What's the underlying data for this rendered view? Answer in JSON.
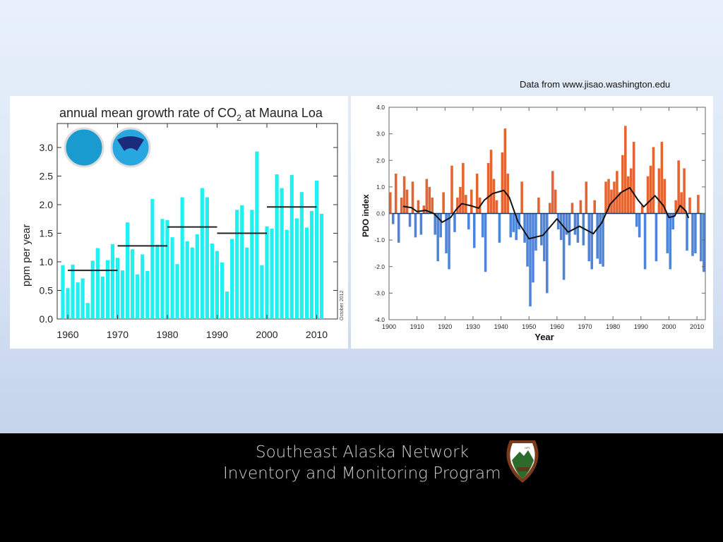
{
  "source_note": "Data from www.jisao.washington.edu",
  "footer": {
    "line1": "Southeast Alaska Network",
    "line2": "Inventory and Monitoring Program",
    "logo_text": "NATIONAL PARK SERVICE"
  },
  "chart_data": [
    {
      "type": "bar",
      "title": "annual mean growth rate of CO",
      "title_sub": "2",
      "title_end": " at Mauna Loa",
      "ylabel": "ppm per year",
      "xlabel": "",
      "side_note": "October 2012",
      "color": "#1ff0f0",
      "ylim": [
        0,
        3.4
      ],
      "yticks": [
        "0.0",
        "0.5",
        "1.0",
        "1.5",
        "2.0",
        "2.5",
        "3.0"
      ],
      "xticks": [
        "1960",
        "1970",
        "1980",
        "1990",
        "2000",
        "2010"
      ],
      "x": [
        1959,
        1960,
        1961,
        1962,
        1963,
        1964,
        1965,
        1966,
        1967,
        1968,
        1969,
        1970,
        1971,
        1972,
        1973,
        1974,
        1975,
        1976,
        1977,
        1978,
        1979,
        1980,
        1981,
        1982,
        1983,
        1984,
        1985,
        1986,
        1987,
        1988,
        1989,
        1990,
        1991,
        1992,
        1993,
        1994,
        1995,
        1996,
        1997,
        1998,
        1999,
        2000,
        2001,
        2002,
        2003,
        2004,
        2005,
        2006,
        2007,
        2008,
        2009,
        2010,
        2011
      ],
      "values": [
        0.94,
        0.54,
        0.95,
        0.64,
        0.71,
        0.28,
        1.02,
        1.24,
        0.74,
        1.03,
        1.31,
        1.07,
        0.85,
        1.69,
        1.22,
        0.78,
        1.13,
        0.84,
        2.1,
        1.3,
        1.75,
        1.73,
        1.43,
        0.96,
        2.13,
        1.36,
        1.25,
        1.48,
        2.29,
        2.13,
        1.32,
        1.19,
        0.99,
        0.48,
        1.4,
        1.91,
        1.99,
        1.25,
        1.91,
        2.93,
        0.94,
        1.62,
        1.58,
        2.53,
        2.29,
        1.56,
        2.52,
        1.76,
        2.22,
        1.6,
        1.89,
        2.42,
        1.84
      ],
      "decadal_means": [
        {
          "start": 1960,
          "end": 1970,
          "value": 0.85
        },
        {
          "start": 1970,
          "end": 1980,
          "value": 1.28
        },
        {
          "start": 1980,
          "end": 1990,
          "value": 1.61
        },
        {
          "start": 1990,
          "end": 2000,
          "value": 1.5
        },
        {
          "start": 2000,
          "end": 2010,
          "value": 1.96
        }
      ]
    },
    {
      "type": "area",
      "title": "",
      "ylabel": "PDO index",
      "xlabel": "Year",
      "xlim": [
        1900,
        2013
      ],
      "ylim": [
        -4.0,
        4.0
      ],
      "yticks": [
        "4.0",
        "3.0",
        "2.0",
        "1.0",
        "0.0",
        "-1.0",
        "-2.0",
        "-3.0",
        "-4.0"
      ],
      "xticks": [
        "1900",
        "1910",
        "1920",
        "1930",
        "1940",
        "1950",
        "1960",
        "1970",
        "1980",
        "1990",
        "2000",
        "2010"
      ],
      "positive_color": "#e2541c",
      "negative_color": "#3b78d6",
      "x_start": 1900,
      "values": [
        0.8,
        -0.4,
        1.5,
        -1.1,
        0.6,
        1.4,
        0.9,
        -0.5,
        1.2,
        -0.9,
        0.5,
        -0.8,
        0.3,
        1.3,
        1.0,
        0.6,
        -0.8,
        -1.8,
        -0.9,
        0.8,
        -1.5,
        -2.1,
        1.8,
        -0.7,
        0.6,
        1.0,
        1.9,
        0.7,
        -0.6,
        0.9,
        -1.3,
        1.5,
        0.6,
        -0.9,
        -2.2,
        1.9,
        2.4,
        1.3,
        0.5,
        -1.1,
        2.3,
        3.2,
        1.5,
        -0.9,
        -0.7,
        -1.0,
        -0.6,
        1.2,
        -1.1,
        -2.0,
        -3.5,
        -2.6,
        -1.4,
        0.6,
        -1.2,
        -1.8,
        -3.0,
        0.4,
        1.6,
        0.9,
        -0.6,
        -1.0,
        -2.5,
        -0.8,
        -1.2,
        0.4,
        -0.8,
        -1.1,
        0.5,
        -1.2,
        1.2,
        -1.8,
        -2.1,
        0.5,
        -1.7,
        -1.9,
        -2.0,
        1.2,
        1.3,
        0.9,
        1.2,
        1.6,
        0.8,
        2.2,
        3.3,
        1.4,
        1.7,
        2.7,
        -0.5,
        -0.9,
        0.3,
        -2.1,
        1.4,
        1.8,
        2.5,
        -1.8,
        1.7,
        2.7,
        1.3,
        -1.5,
        -2.1,
        -0.6,
        0.5,
        2.0,
        0.8,
        1.7,
        -1.4,
        0.6,
        -1.6,
        -1.5,
        0.7,
        -1.8,
        -2.2
      ],
      "smoothed": {
        "x": [
          1905,
          1908,
          1910,
          1913,
          1916,
          1919,
          1922,
          1924,
          1926,
          1929,
          1932,
          1934,
          1937,
          1941,
          1943,
          1946,
          1950,
          1955,
          1960,
          1964,
          1968,
          1973,
          1976,
          1979,
          1983,
          1986,
          1989,
          1991,
          1995,
          1998,
          2000,
          2002,
          2004,
          2006,
          2007
        ],
        "y": [
          0.27,
          0.22,
          0.07,
          0.12,
          0.0,
          -0.33,
          -0.15,
          0.15,
          0.37,
          0.3,
          0.2,
          0.5,
          0.75,
          0.87,
          0.6,
          -0.3,
          -0.95,
          -0.82,
          -0.2,
          -0.7,
          -0.48,
          -0.76,
          -0.35,
          0.35,
          0.8,
          0.97,
          0.5,
          0.25,
          0.67,
          0.3,
          -0.15,
          -0.1,
          0.3,
          0.1,
          -0.17
        ]
      }
    }
  ]
}
